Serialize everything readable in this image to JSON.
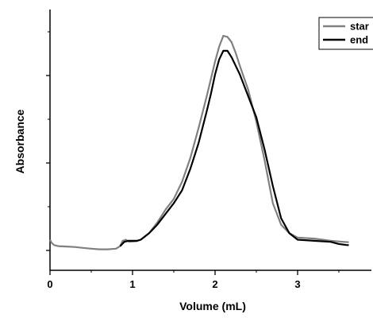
{
  "chart_data": {
    "type": "line",
    "xlabel": "Volume (mL)",
    "ylabel": "Absorbance",
    "xlim": [
      0,
      3.8
    ],
    "ylim": [
      -0.05,
      1.05
    ],
    "x_ticks": [
      0,
      1,
      2,
      3
    ],
    "y_ticks_labeled": false,
    "legend_position": "top-right",
    "grid": false,
    "series": [
      {
        "name": "start",
        "color": "#808080",
        "points": [
          [
            0.0,
            0.05
          ],
          [
            0.02,
            0.035
          ],
          [
            0.05,
            0.025
          ],
          [
            0.1,
            0.02
          ],
          [
            0.2,
            0.018
          ],
          [
            0.3,
            0.016
          ],
          [
            0.4,
            0.012
          ],
          [
            0.5,
            0.008
          ],
          [
            0.6,
            0.005
          ],
          [
            0.7,
            0.005
          ],
          [
            0.8,
            0.008
          ],
          [
            0.85,
            0.02
          ],
          [
            0.88,
            0.045
          ],
          [
            0.92,
            0.05
          ],
          [
            0.96,
            0.04
          ],
          [
            1.05,
            0.043
          ],
          [
            1.1,
            0.05
          ],
          [
            1.2,
            0.08
          ],
          [
            1.3,
            0.13
          ],
          [
            1.4,
            0.19
          ],
          [
            1.5,
            0.24
          ],
          [
            1.6,
            0.32
          ],
          [
            1.7,
            0.43
          ],
          [
            1.8,
            0.57
          ],
          [
            1.9,
            0.72
          ],
          [
            1.95,
            0.8
          ],
          [
            2.0,
            0.88
          ],
          [
            2.05,
            0.95
          ],
          [
            2.1,
            1.0
          ],
          [
            2.15,
            0.995
          ],
          [
            2.2,
            0.97
          ],
          [
            2.25,
            0.92
          ],
          [
            2.3,
            0.86
          ],
          [
            2.4,
            0.75
          ],
          [
            2.5,
            0.6
          ],
          [
            2.6,
            0.42
          ],
          [
            2.7,
            0.22
          ],
          [
            2.8,
            0.12
          ],
          [
            2.9,
            0.08
          ],
          [
            3.0,
            0.06
          ],
          [
            3.2,
            0.055
          ],
          [
            3.4,
            0.045
          ],
          [
            3.55,
            0.04
          ],
          [
            3.62,
            0.038
          ]
        ]
      },
      {
        "name": "end",
        "color": "#000000",
        "points": [
          [
            0.85,
            0.02
          ],
          [
            0.9,
            0.04
          ],
          [
            0.95,
            0.045
          ],
          [
            1.05,
            0.045
          ],
          [
            1.1,
            0.05
          ],
          [
            1.2,
            0.08
          ],
          [
            1.3,
            0.12
          ],
          [
            1.4,
            0.17
          ],
          [
            1.5,
            0.22
          ],
          [
            1.6,
            0.28
          ],
          [
            1.7,
            0.38
          ],
          [
            1.8,
            0.5
          ],
          [
            1.9,
            0.65
          ],
          [
            1.95,
            0.73
          ],
          [
            2.0,
            0.82
          ],
          [
            2.05,
            0.89
          ],
          [
            2.1,
            0.93
          ],
          [
            2.15,
            0.93
          ],
          [
            2.2,
            0.9
          ],
          [
            2.25,
            0.86
          ],
          [
            2.3,
            0.82
          ],
          [
            2.4,
            0.72
          ],
          [
            2.5,
            0.62
          ],
          [
            2.6,
            0.47
          ],
          [
            2.7,
            0.3
          ],
          [
            2.8,
            0.15
          ],
          [
            2.9,
            0.08
          ],
          [
            3.0,
            0.05
          ],
          [
            3.2,
            0.045
          ],
          [
            3.4,
            0.04
          ],
          [
            3.5,
            0.03
          ],
          [
            3.6,
            0.025
          ],
          [
            3.62,
            0.025
          ]
        ]
      }
    ],
    "legend": [
      {
        "label": "star",
        "series": "start"
      },
      {
        "label": "end",
        "series": "end"
      }
    ]
  }
}
